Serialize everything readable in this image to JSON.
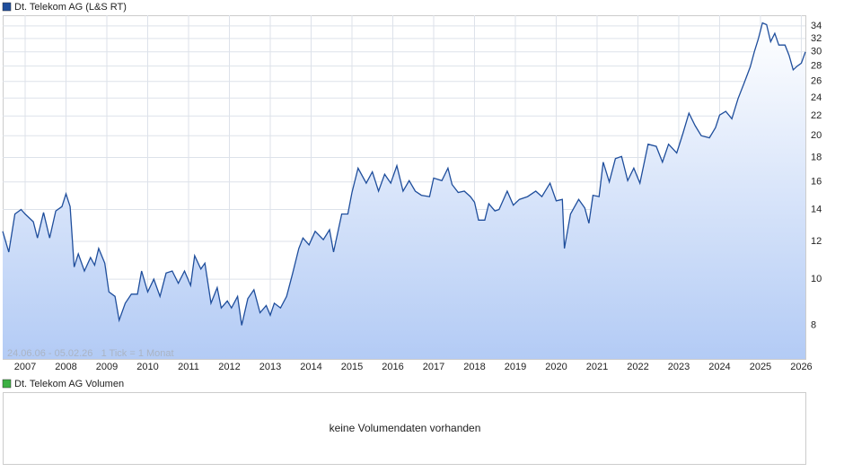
{
  "chart_data": {
    "type": "line",
    "legend": "Dt. Telekom AG (L&S RT)",
    "range_note": "24.06.06 - 05.02.26   1 Tick = 1 Monat",
    "volume_legend": "Dt. Telekom AG Volumen",
    "volume_message": "keine Volumendaten vorhanden",
    "log_scale": true,
    "grid": true,
    "color": "#1f4e9c",
    "volume_color": "#3cb043",
    "xlim": [
      2006.45,
      2026.1
    ],
    "xticks": [
      2007,
      2008,
      2009,
      2010,
      2011,
      2012,
      2013,
      2014,
      2015,
      2016,
      2017,
      2018,
      2019,
      2020,
      2021,
      2022,
      2023,
      2024,
      2025,
      2026
    ],
    "ylim": [
      6.8,
      35.8
    ],
    "yticks": [
      8,
      10,
      12,
      14,
      16,
      18,
      20,
      22,
      24,
      26,
      28,
      30,
      32,
      34
    ],
    "x": [
      2006.45,
      2006.6,
      2006.75,
      2006.9,
      2007.0,
      2007.2,
      2007.3,
      2007.45,
      2007.6,
      2007.75,
      2007.9,
      2008.0,
      2008.1,
      2008.2,
      2008.3,
      2008.45,
      2008.6,
      2008.7,
      2008.8,
      2008.95,
      2009.05,
      2009.2,
      2009.3,
      2009.45,
      2009.6,
      2009.75,
      2009.85,
      2010.0,
      2010.15,
      2010.3,
      2010.45,
      2010.6,
      2010.75,
      2010.9,
      2011.05,
      2011.15,
      2011.3,
      2011.4,
      2011.55,
      2011.7,
      2011.8,
      2011.95,
      2012.05,
      2012.2,
      2012.3,
      2012.45,
      2012.6,
      2012.75,
      2012.9,
      2013.0,
      2013.1,
      2013.25,
      2013.4,
      2013.55,
      2013.7,
      2013.8,
      2013.95,
      2014.1,
      2014.3,
      2014.45,
      2014.55,
      2014.75,
      2014.9,
      2015.0,
      2015.15,
      2015.35,
      2015.5,
      2015.65,
      2015.8,
      2015.95,
      2016.1,
      2016.25,
      2016.4,
      2016.55,
      2016.7,
      2016.9,
      2017.0,
      2017.2,
      2017.35,
      2017.45,
      2017.6,
      2017.75,
      2017.9,
      2018.0,
      2018.1,
      2018.25,
      2018.35,
      2018.5,
      2018.6,
      2018.8,
      2018.95,
      2019.1,
      2019.3,
      2019.5,
      2019.65,
      2019.85,
      2020.0,
      2020.15,
      2020.2,
      2020.35,
      2020.55,
      2020.7,
      2020.8,
      2020.9,
      2021.05,
      2021.15,
      2021.3,
      2021.45,
      2021.6,
      2021.75,
      2021.9,
      2022.05,
      2022.25,
      2022.45,
      2022.6,
      2022.75,
      2022.95,
      2023.1,
      2023.25,
      2023.4,
      2023.55,
      2023.75,
      2023.9,
      2024.0,
      2024.15,
      2024.3,
      2024.45,
      2024.6,
      2024.75,
      2024.85,
      2024.95,
      2025.05,
      2025.15,
      2025.25,
      2025.35,
      2025.45,
      2025.6,
      2025.7,
      2025.8,
      2025.9,
      2026.0,
      2026.1
    ],
    "values": [
      12.6,
      11.4,
      13.7,
      14.0,
      13.7,
      13.2,
      12.2,
      13.8,
      12.2,
      13.9,
      14.2,
      15.1,
      14.2,
      10.6,
      11.3,
      10.4,
      11.1,
      10.7,
      11.6,
      10.8,
      9.4,
      9.2,
      8.2,
      8.9,
      9.3,
      9.3,
      10.4,
      9.4,
      10.0,
      9.2,
      10.3,
      10.4,
      9.8,
      10.4,
      9.7,
      11.2,
      10.5,
      10.8,
      8.9,
      9.6,
      8.7,
      9.0,
      8.7,
      9.2,
      8.0,
      9.1,
      9.5,
      8.5,
      8.8,
      8.4,
      8.9,
      8.7,
      9.2,
      10.3,
      11.6,
      12.2,
      11.8,
      12.6,
      12.1,
      12.7,
      11.4,
      13.7,
      13.7,
      15.2,
      17.1,
      15.9,
      16.8,
      15.3,
      16.6,
      15.9,
      17.3,
      15.3,
      16.1,
      15.3,
      15.0,
      14.9,
      16.3,
      16.1,
      17.1,
      15.8,
      15.2,
      15.3,
      14.9,
      14.5,
      13.3,
      13.3,
      14.4,
      13.9,
      14.0,
      15.3,
      14.3,
      14.7,
      14.9,
      15.3,
      14.9,
      15.9,
      14.6,
      14.7,
      11.6,
      13.7,
      14.7,
      14.1,
      13.1,
      15.0,
      14.9,
      17.6,
      16.0,
      17.9,
      18.1,
      16.1,
      17.1,
      15.9,
      19.2,
      19.0,
      17.6,
      19.2,
      18.4,
      20.2,
      22.3,
      21.0,
      20.0,
      19.8,
      20.8,
      22.1,
      22.5,
      21.7,
      23.9,
      25.8,
      27.9,
      30.0,
      32.0,
      34.5,
      34.2,
      31.5,
      32.8,
      31.0,
      31.0,
      29.5,
      27.5,
      28.0,
      28.4,
      30.0
    ]
  }
}
